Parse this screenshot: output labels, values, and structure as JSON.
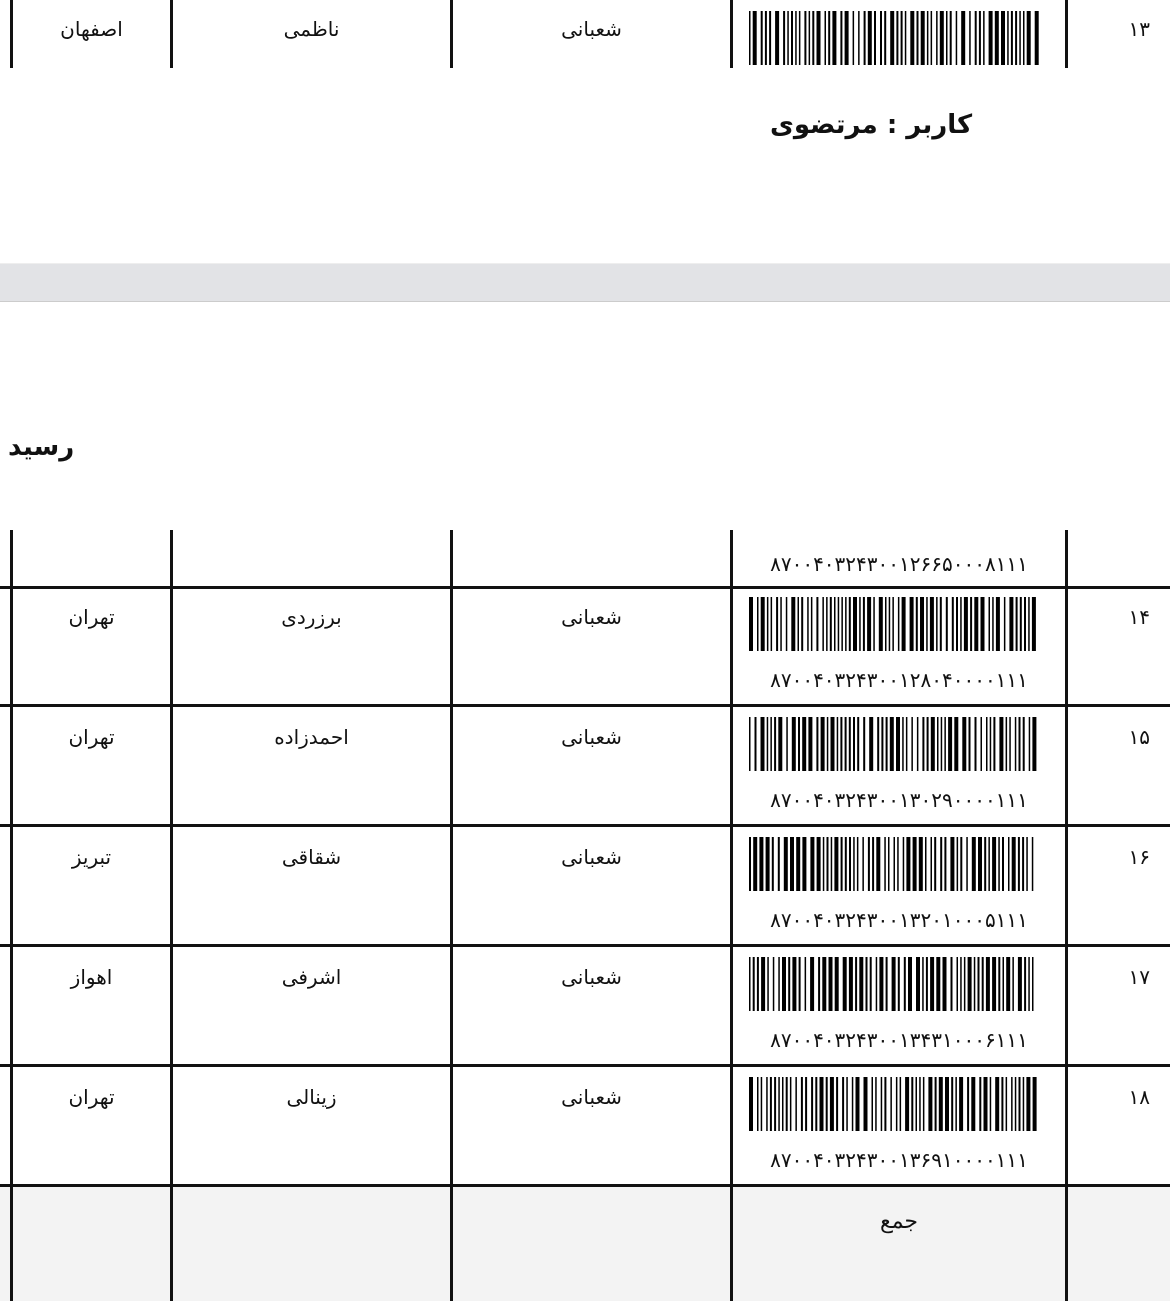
{
  "top_row": {
    "number": "۱۳",
    "sender": "شعبانی",
    "name": "ناظمی",
    "city": "اصفهان"
  },
  "user_line": "کاربر : مرتضوی",
  "receipt_title": "رسید",
  "continuation_code": "۸۷۰۰۴۰۳۲۴۳۰۰۱۲۶۶۵۰۰۰۸۱۱۱",
  "rows": [
    {
      "number": "۱۴",
      "sender": "شعبانی",
      "name": "برزردی",
      "city": "تهران",
      "code": "۸۷۰۰۴۰۳۲۴۳۰۰۱۲۸۰۴۰۰۰۰۱۱۱"
    },
    {
      "number": "۱۵",
      "sender": "شعبانی",
      "name": "احمدزاده",
      "city": "تهران",
      "code": "۸۷۰۰۴۰۳۲۴۳۰۰۱۳۰۲۹۰۰۰۰۱۱۱"
    },
    {
      "number": "۱۶",
      "sender": "شعبانی",
      "name": "شقاقی",
      "city": "تبریز",
      "code": "۸۷۰۰۴۰۳۲۴۳۰۰۱۳۲۰۱۰۰۰۵۱۱۱"
    },
    {
      "number": "۱۷",
      "sender": "شعبانی",
      "name": "اشرفی",
      "city": "اهواز",
      "code": "۸۷۰۰۴۰۳۲۴۳۰۰۱۳۴۳۱۰۰۰۶۱۱۱"
    },
    {
      "number": "۱۸",
      "sender": "شعبانی",
      "name": "زینالی",
      "city": "تهران",
      "code": "۸۷۰۰۴۰۳۲۴۳۰۰۱۳۶۹۱۰۰۰۰۱۱۱"
    }
  ],
  "total_label": "جمع"
}
